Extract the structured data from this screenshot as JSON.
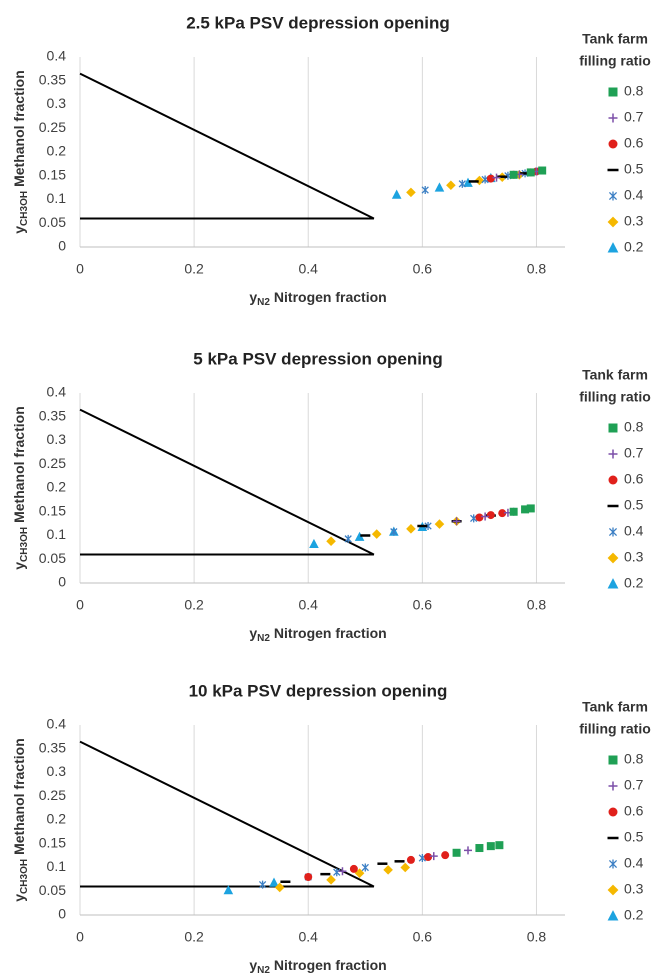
{
  "chart_data": [
    {
      "type": "scatter",
      "title": "2.5 kPa PSV depression opening",
      "x_label_symbol": "y",
      "x_label_subscript": "N2",
      "x_label": "Nitrogen fraction",
      "y_label_symbol": "y",
      "y_label_subscript": "CH3OH",
      "y_label": "Methanol fraction",
      "legend_title": [
        "Tank farm",
        "filling ratio"
      ],
      "legend": "right",
      "xlim": [
        0,
        0.85
      ],
      "xticks": [
        0,
        0.2,
        0.4,
        0.6,
        0.8
      ],
      "ylim": [
        0,
        0.4
      ],
      "yticks": [
        0,
        0.05,
        0.1,
        0.15,
        0.2,
        0.25,
        0.3,
        0.35,
        0.4
      ],
      "grid": "x",
      "envelope": {
        "x": [
          0,
          0.515,
          0
        ],
        "values": [
          0.365,
          0.06,
          0.06
        ],
        "color": "#000000"
      },
      "series": [
        {
          "name": "0.8",
          "marker": "square",
          "color": "#1fa055",
          "x": [
            0.76,
            0.79,
            0.81
          ],
          "values": [
            0.152,
            0.157,
            0.161
          ]
        },
        {
          "name": "0.7",
          "marker": "plus",
          "color": "#7b4fa8",
          "x": [
            0.73,
            0.77,
            0.8
          ],
          "values": [
            0.146,
            0.153,
            0.159
          ]
        },
        {
          "name": "0.6",
          "marker": "circle",
          "color": "#e0201b",
          "x": [
            0.72,
            0.76,
            0.79,
            0.8
          ],
          "values": [
            0.144,
            0.152,
            0.157,
            0.159
          ]
        },
        {
          "name": "0.5",
          "marker": "dash",
          "color": "#000000",
          "x": [
            0.69,
            0.74,
            0.78,
            0.8
          ],
          "values": [
            0.138,
            0.148,
            0.155,
            0.158
          ]
        },
        {
          "name": "0.4",
          "marker": "asterisk",
          "color": "#3b7fc4",
          "x": [
            0.605,
            0.67,
            0.71,
            0.75,
            0.78
          ],
          "values": [
            0.12,
            0.133,
            0.142,
            0.15,
            0.155
          ]
        },
        {
          "name": "0.3",
          "marker": "diamond",
          "color": "#f5b800",
          "x": [
            0.58,
            0.65,
            0.7,
            0.74,
            0.77
          ],
          "values": [
            0.115,
            0.13,
            0.14,
            0.147,
            0.152
          ]
        },
        {
          "name": "0.2",
          "marker": "triangle",
          "color": "#1ca3e0",
          "x": [
            0.555,
            0.63,
            0.68,
            0.72
          ],
          "values": [
            0.11,
            0.125,
            0.135,
            0.145
          ]
        }
      ]
    },
    {
      "type": "scatter",
      "title": "5 kPa PSV depression opening",
      "x_label_symbol": "y",
      "x_label_subscript": "N2",
      "x_label": "Nitrogen fraction",
      "y_label_symbol": "y",
      "y_label_subscript": "CH3OH",
      "y_label": "Methanol fraction",
      "legend_title": [
        "Tank farm",
        "filling ratio"
      ],
      "legend": "right",
      "xlim": [
        0,
        0.85
      ],
      "xticks": [
        0,
        0.2,
        0.4,
        0.6,
        0.8
      ],
      "ylim": [
        0,
        0.4
      ],
      "yticks": [
        0,
        0.05,
        0.1,
        0.15,
        0.2,
        0.25,
        0.3,
        0.35,
        0.4
      ],
      "grid": "x",
      "envelope": {
        "x": [
          0,
          0.515,
          0
        ],
        "values": [
          0.365,
          0.06,
          0.06
        ],
        "color": "#000000"
      },
      "series": [
        {
          "name": "0.8",
          "marker": "square",
          "color": "#1fa055",
          "x": [
            0.76,
            0.78,
            0.79
          ],
          "values": [
            0.15,
            0.155,
            0.157
          ]
        },
        {
          "name": "0.7",
          "marker": "plus",
          "color": "#7b4fa8",
          "x": [
            0.66,
            0.71,
            0.75
          ],
          "values": [
            0.13,
            0.14,
            0.148
          ]
        },
        {
          "name": "0.6",
          "marker": "circle",
          "color": "#e0201b",
          "x": [
            0.7,
            0.72,
            0.74
          ],
          "values": [
            0.138,
            0.143,
            0.147
          ]
        },
        {
          "name": "0.5",
          "marker": "dash",
          "color": "#000000",
          "x": [
            0.5,
            0.6,
            0.66,
            0.72
          ],
          "values": [
            0.1,
            0.12,
            0.13,
            0.142
          ]
        },
        {
          "name": "0.4",
          "marker": "asterisk",
          "color": "#3b7fc4",
          "x": [
            0.47,
            0.55,
            0.61,
            0.69,
            0.76
          ],
          "values": [
            0.093,
            0.108,
            0.12,
            0.136,
            0.15
          ]
        },
        {
          "name": "0.3",
          "marker": "diamond",
          "color": "#f5b800",
          "x": [
            0.44,
            0.52,
            0.58,
            0.63,
            0.66
          ],
          "values": [
            0.088,
            0.103,
            0.114,
            0.124,
            0.13
          ]
        },
        {
          "name": "0.2",
          "marker": "triangle",
          "color": "#1ca3e0",
          "x": [
            0.41,
            0.49,
            0.55,
            0.6
          ],
          "values": [
            0.082,
            0.097,
            0.108,
            0.118
          ]
        }
      ]
    },
    {
      "type": "scatter",
      "title": "10 kPa PSV depression opening",
      "x_label_symbol": "y",
      "x_label_subscript": "N2",
      "x_label": "Nitrogen fraction",
      "y_label_symbol": "y",
      "y_label_subscript": "CH3OH",
      "y_label": "Methanol fraction",
      "legend_title": [
        "Tank farm",
        "filling ratio"
      ],
      "legend": "right",
      "xlim": [
        0,
        0.85
      ],
      "xticks": [
        0,
        0.2,
        0.4,
        0.6,
        0.8
      ],
      "ylim": [
        0,
        0.4
      ],
      "yticks": [
        0,
        0.05,
        0.1,
        0.15,
        0.2,
        0.25,
        0.3,
        0.35,
        0.4
      ],
      "grid": "x",
      "envelope": {
        "x": [
          0,
          0.515,
          0
        ],
        "values": [
          0.365,
          0.06,
          0.06
        ],
        "color": "#000000"
      },
      "series": [
        {
          "name": "0.8",
          "marker": "square",
          "color": "#1fa055",
          "x": [
            0.66,
            0.7,
            0.72,
            0.735
          ],
          "values": [
            0.131,
            0.141,
            0.145,
            0.147
          ]
        },
        {
          "name": "0.7",
          "marker": "plus",
          "color": "#7b4fa8",
          "x": [
            0.46,
            0.62,
            0.68
          ],
          "values": [
            0.092,
            0.124,
            0.136
          ]
        },
        {
          "name": "0.6",
          "marker": "circle",
          "color": "#e0201b",
          "x": [
            0.4,
            0.48,
            0.58,
            0.61,
            0.64
          ],
          "values": [
            0.08,
            0.097,
            0.116,
            0.122,
            0.126
          ]
        },
        {
          "name": "0.5",
          "marker": "dash",
          "color": "#000000",
          "x": [
            0.36,
            0.43,
            0.53,
            0.56
          ],
          "values": [
            0.07,
            0.086,
            0.108,
            0.113
          ]
        },
        {
          "name": "0.4",
          "marker": "asterisk",
          "color": "#3b7fc4",
          "x": [
            0.32,
            0.4,
            0.45,
            0.5,
            0.6
          ],
          "values": [
            0.064,
            0.08,
            0.09,
            0.1,
            0.12
          ]
        },
        {
          "name": "0.3",
          "marker": "diamond",
          "color": "#f5b800",
          "x": [
            0.35,
            0.44,
            0.49,
            0.54,
            0.57
          ],
          "values": [
            0.058,
            0.074,
            0.088,
            0.095,
            0.1
          ]
        },
        {
          "name": "0.2",
          "marker": "triangle",
          "color": "#1ca3e0",
          "x": [
            0.26,
            0.34
          ],
          "values": [
            0.052,
            0.068
          ]
        }
      ]
    }
  ]
}
